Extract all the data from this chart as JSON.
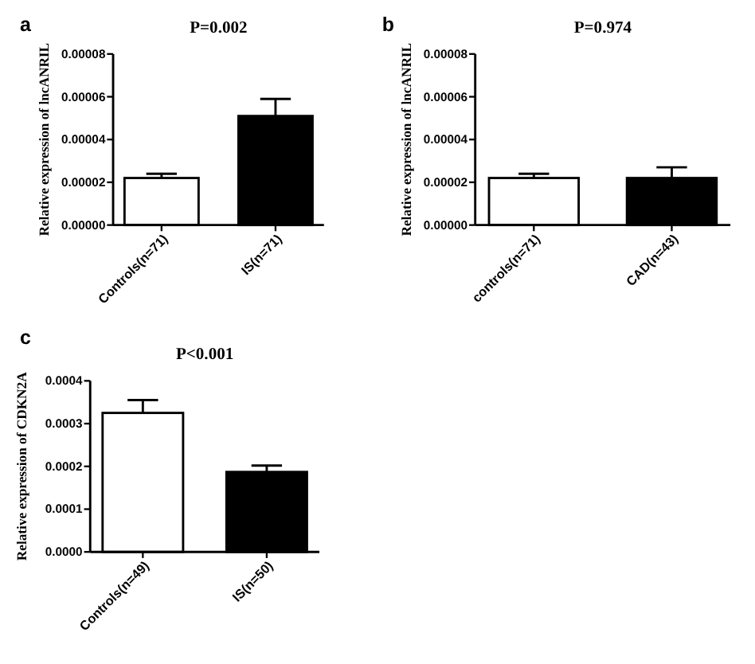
{
  "chart_data": [
    {
      "type": "bar",
      "title": "P=0.002",
      "ylabel": "Relative expression of lncANRIL",
      "annotations": [
        "a"
      ],
      "categories": [
        "Controls(n=71)",
        "IS(n=71)"
      ],
      "values": [
        2.2e-05,
        5.1e-05
      ],
      "colors": [
        "#ffffff",
        "#000000"
      ],
      "errors": [
        [
          2.2e-05,
          2.4e-05
        ],
        [
          5.1e-05,
          5.9e-05
        ]
      ],
      "ylim": [
        0,
        8e-05
      ],
      "yticks": [
        {
          "value": 0,
          "label": "0.00000"
        },
        {
          "value": 2e-05,
          "label": "0.00002"
        },
        {
          "value": 4e-05,
          "label": "0.00004"
        },
        {
          "value": 6e-05,
          "label": "0.00006"
        },
        {
          "value": 8e-05,
          "label": "0.00008"
        }
      ],
      "grid": false
    },
    {
      "type": "bar",
      "title": "P=0.974",
      "ylabel": "Relative expression of lncANRIL",
      "annotations": [
        "b"
      ],
      "categories": [
        "controls(n=71)",
        "CAD(n=43)"
      ],
      "values": [
        2.2e-05,
        2.2e-05
      ],
      "colors": [
        "#ffffff",
        "#000000"
      ],
      "errors": [
        [
          2.2e-05,
          2.4e-05
        ],
        [
          2.2e-05,
          2.7e-05
        ]
      ],
      "ylim": [
        0,
        8e-05
      ],
      "yticks": [
        {
          "value": 0,
          "label": "0.00000"
        },
        {
          "value": 2e-05,
          "label": "0.00002"
        },
        {
          "value": 4e-05,
          "label": "0.00004"
        },
        {
          "value": 6e-05,
          "label": "0.00006"
        },
        {
          "value": 8e-05,
          "label": "0.00008"
        }
      ],
      "grid": false
    },
    {
      "type": "bar",
      "title": "P<0.001",
      "ylabel": "Relative expression of CDKN2A",
      "annotations": [
        "c"
      ],
      "categories": [
        "Controls(n=49)",
        "IS(n=50)"
      ],
      "values": [
        0.000325,
        0.000187
      ],
      "colors": [
        "#ffffff",
        "#000000"
      ],
      "errors": [
        [
          0.000325,
          0.000355
        ],
        [
          0.000187,
          0.000202
        ]
      ],
      "ylim": [
        0,
        0.0004
      ],
      "yticks": [
        {
          "value": 0,
          "label": "0.0000"
        },
        {
          "value": 0.0001,
          "label": "0.0001"
        },
        {
          "value": 0.0002,
          "label": "0.0002"
        },
        {
          "value": 0.0003,
          "label": "0.0003"
        },
        {
          "value": 0.0004,
          "label": "0.0004"
        }
      ],
      "grid": false
    }
  ]
}
